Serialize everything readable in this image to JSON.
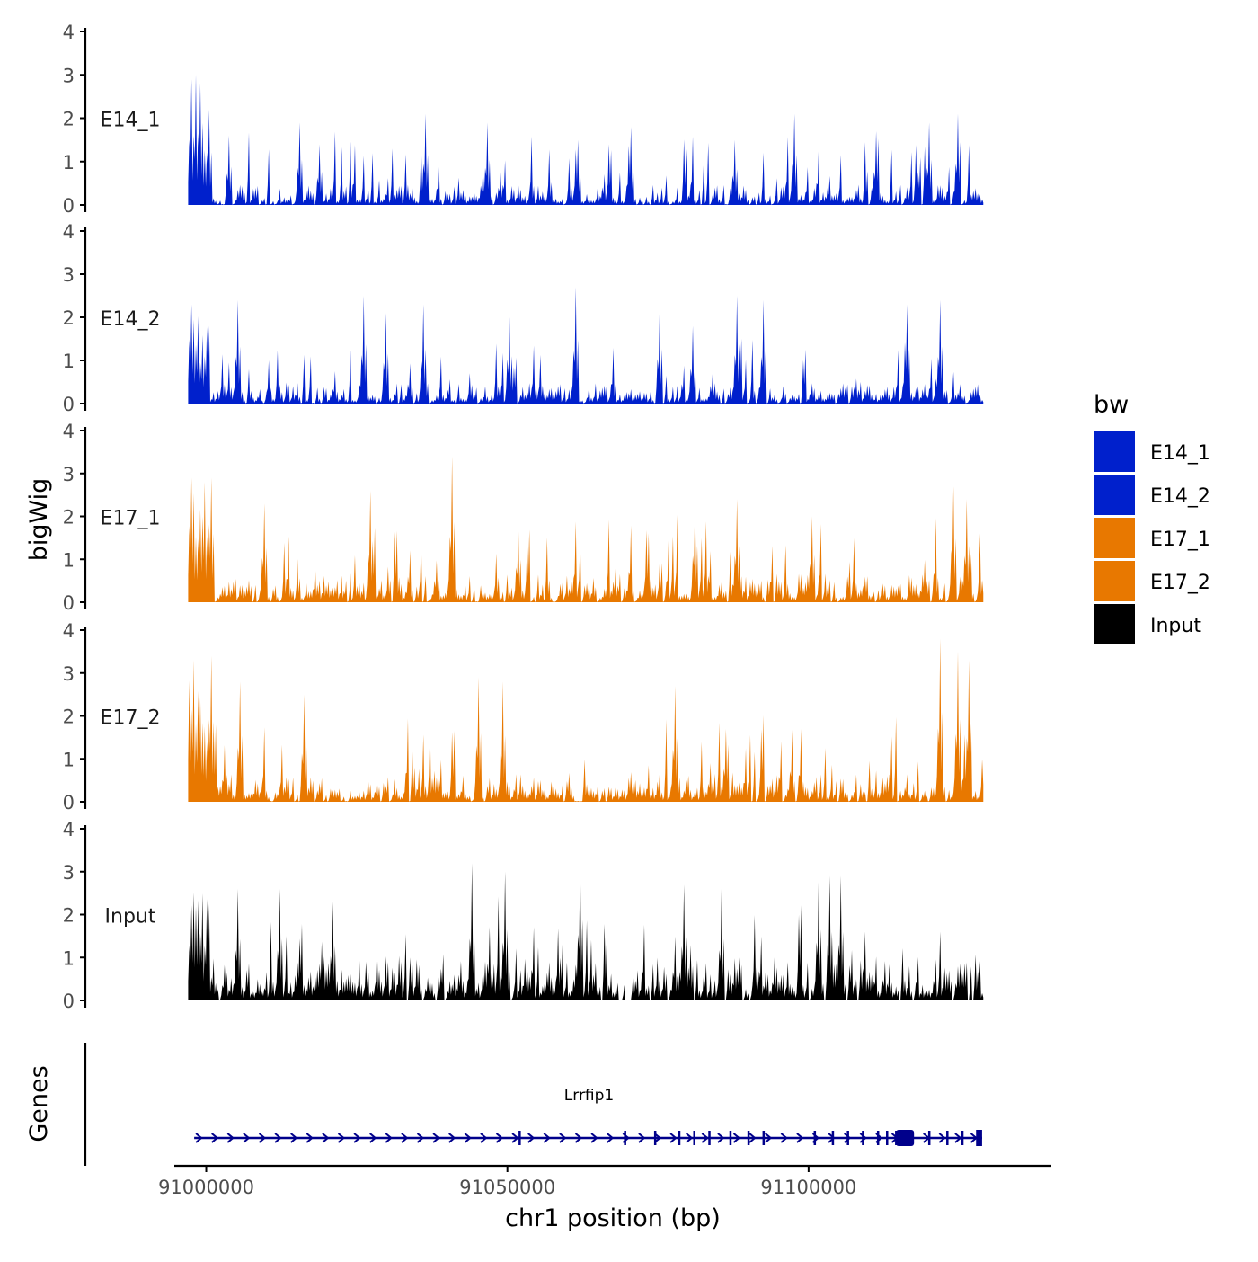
{
  "chart_data": {
    "type": "area",
    "ylabel": "bigWig",
    "xlabel": "chr1 position (bp)",
    "xlim": [
      90995000,
      91140000
    ],
    "data_range": [
      90997000,
      91129000
    ],
    "x_ticks": [
      91000000,
      91050000,
      91100000
    ],
    "x_tick_labels": [
      "91000000",
      "91050000",
      "91100000"
    ],
    "y_ticks": [
      0,
      1,
      2,
      3,
      4
    ],
    "y_tick_labels": [
      "0",
      "1",
      "2",
      "3",
      "4"
    ],
    "ylim": [
      0,
      4
    ],
    "legend": {
      "title": "bw",
      "position": "right",
      "entries": [
        {
          "label": "E14_1",
          "color": "#0020CC"
        },
        {
          "label": "E14_2",
          "color": "#0020CC"
        },
        {
          "label": "E17_1",
          "color": "#E87800"
        },
        {
          "label": "E17_2",
          "color": "#E87800"
        },
        {
          "label": "Input",
          "color": "#000000"
        }
      ]
    },
    "series": [
      {
        "name": "E14_1",
        "color": "#0020CC",
        "max": 3.0,
        "bin_count": 360,
        "peaks": [
          {
            "x": 90997500,
            "y": 2.9
          },
          {
            "x": 90998200,
            "y": 3.0
          },
          {
            "x": 90999000,
            "y": 2.8
          },
          {
            "x": 91000200,
            "y": 2.2
          },
          {
            "x": 91003500,
            "y": 1.6
          },
          {
            "x": 91015200,
            "y": 1.9
          },
          {
            "x": 91018500,
            "y": 1.4
          },
          {
            "x": 91036200,
            "y": 2.1
          },
          {
            "x": 91046500,
            "y": 1.9
          },
          {
            "x": 91061500,
            "y": 1.5
          },
          {
            "x": 91070500,
            "y": 1.8
          },
          {
            "x": 91087500,
            "y": 1.5
          },
          {
            "x": 91097500,
            "y": 2.1
          },
          {
            "x": 91111000,
            "y": 1.7
          },
          {
            "x": 91120000,
            "y": 1.9
          },
          {
            "x": 91124500,
            "y": 2.1
          }
        ]
      },
      {
        "name": "E14_2",
        "color": "#0020CC",
        "max": 2.7,
        "bin_count": 360,
        "peaks": [
          {
            "x": 90997500,
            "y": 2.3
          },
          {
            "x": 91005000,
            "y": 2.4
          },
          {
            "x": 91026000,
            "y": 2.5
          },
          {
            "x": 91029500,
            "y": 2.1
          },
          {
            "x": 91036000,
            "y": 2.3
          },
          {
            "x": 91050000,
            "y": 2.0
          },
          {
            "x": 91061000,
            "y": 2.7
          },
          {
            "x": 91075000,
            "y": 2.3
          },
          {
            "x": 91080500,
            "y": 1.8
          },
          {
            "x": 91088000,
            "y": 2.5
          },
          {
            "x": 91092500,
            "y": 2.4
          },
          {
            "x": 91116000,
            "y": 2.3
          },
          {
            "x": 91121500,
            "y": 2.4
          }
        ]
      },
      {
        "name": "E17_1",
        "color": "#E87800",
        "max": 3.4,
        "bin_count": 360,
        "peaks": [
          {
            "x": 90997500,
            "y": 2.9
          },
          {
            "x": 90999500,
            "y": 2.8
          },
          {
            "x": 91000800,
            "y": 2.9
          },
          {
            "x": 91009500,
            "y": 2.3
          },
          {
            "x": 91027000,
            "y": 2.6
          },
          {
            "x": 91040500,
            "y": 3.4
          },
          {
            "x": 91051500,
            "y": 1.8
          },
          {
            "x": 91081000,
            "y": 2.4
          },
          {
            "x": 91088000,
            "y": 2.4
          },
          {
            "x": 91100500,
            "y": 2.0
          },
          {
            "x": 91124000,
            "y": 2.7
          },
          {
            "x": 91126000,
            "y": 2.4
          }
        ]
      },
      {
        "name": "E17_2",
        "color": "#E87800",
        "max": 3.8,
        "bin_count": 360,
        "peaks": [
          {
            "x": 90997800,
            "y": 3.3
          },
          {
            "x": 91000500,
            "y": 3.4
          },
          {
            "x": 91005500,
            "y": 2.8
          },
          {
            "x": 91016000,
            "y": 2.5
          },
          {
            "x": 91045000,
            "y": 2.9
          },
          {
            "x": 91049000,
            "y": 2.8
          },
          {
            "x": 91077500,
            "y": 2.7
          },
          {
            "x": 91086000,
            "y": 1.7
          },
          {
            "x": 91121500,
            "y": 3.8
          },
          {
            "x": 91124500,
            "y": 3.5
          },
          {
            "x": 91126500,
            "y": 3.3
          }
        ]
      },
      {
        "name": "Input",
        "color": "#000000",
        "max": 3.4,
        "bin_count": 360,
        "peaks": [
          {
            "x": 91005000,
            "y": 2.6
          },
          {
            "x": 91012000,
            "y": 2.6
          },
          {
            "x": 91021000,
            "y": 2.3
          },
          {
            "x": 91044000,
            "y": 3.2
          },
          {
            "x": 91049500,
            "y": 3.0
          },
          {
            "x": 91062000,
            "y": 3.4
          },
          {
            "x": 91079000,
            "y": 2.7
          },
          {
            "x": 91085500,
            "y": 2.6
          },
          {
            "x": 91101500,
            "y": 3.0
          },
          {
            "x": 91103500,
            "y": 2.9
          },
          {
            "x": 91105000,
            "y": 2.9
          }
        ]
      }
    ],
    "gene_track": {
      "label": "Genes",
      "genes": [
        {
          "name": "Lrrfip1",
          "start": 90998000,
          "end": 91128800,
          "strand": "+",
          "color": "#00008B",
          "exons": [
            91052000,
            91069500,
            91074500,
            91078500,
            91081000,
            91083500,
            91087000,
            91090000,
            91092500,
            91101000,
            91104000,
            91106500,
            91109000,
            91111500,
            91113000,
            91114500,
            91120000,
            91123000,
            91125500,
            91128000
          ],
          "thick_block": [
            91114500,
            91117500
          ],
          "end_block": [
            91127800,
            91128800
          ]
        }
      ]
    }
  }
}
